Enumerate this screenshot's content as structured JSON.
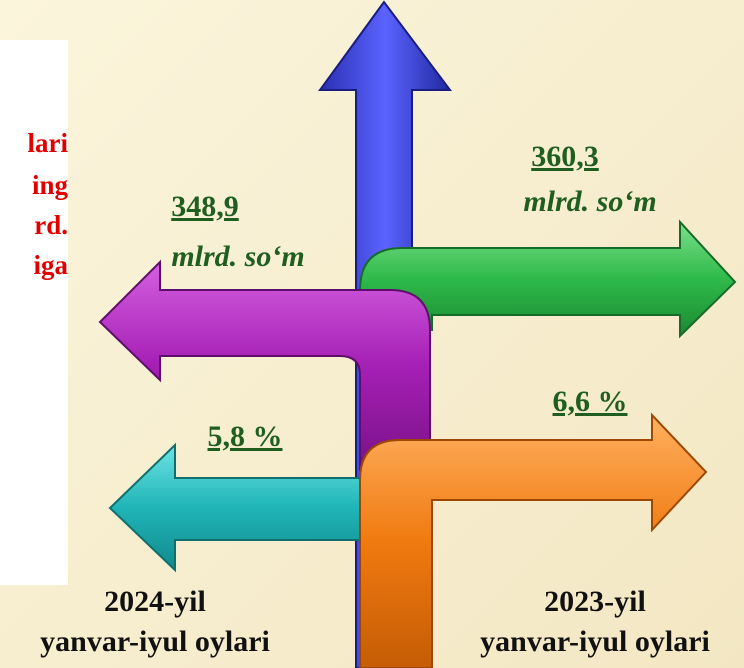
{
  "left_panel": {
    "lines": [
      "lari",
      "ing",
      "rd.",
      "iga"
    ]
  },
  "left": {
    "amount": "348,9",
    "unit": "mlrd. so‘m",
    "percent": "5,8 %",
    "period_year": "2024-yil",
    "period_months": "yanvar-iyul oylari"
  },
  "right": {
    "amount": "360,3",
    "unit": "mlrd. so‘m",
    "percent": "6,6 %",
    "period_year": "2023-yil",
    "period_months": "yanvar-iyul oylari"
  }
}
